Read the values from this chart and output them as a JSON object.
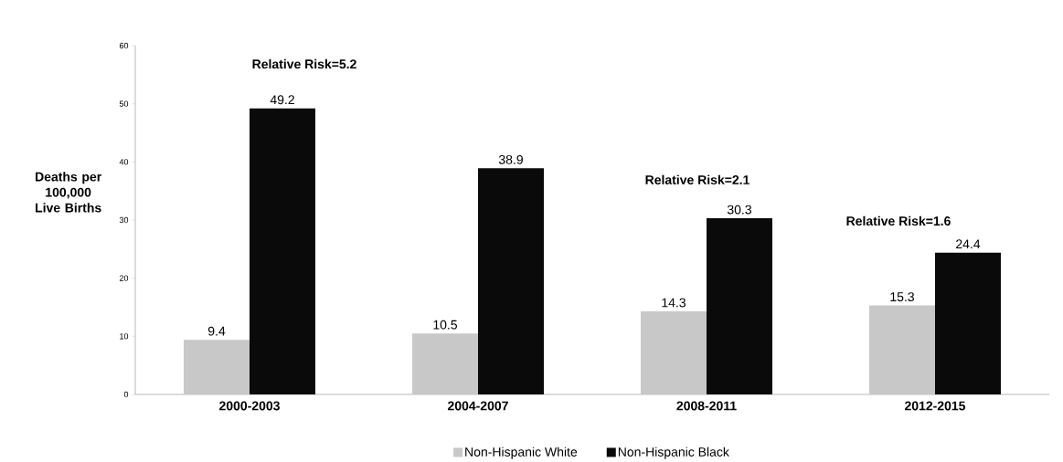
{
  "chart_data": {
    "type": "bar",
    "ylabel": "Deaths per 100,000 Live Births",
    "categories": [
      "2000-2003",
      "2004-2007",
      "2008-2011",
      "2012-2015"
    ],
    "series": [
      {
        "name": "Non-Hispanic White",
        "color": "#c8c8c8",
        "values": [
          9.4,
          10.5,
          14.3,
          15.3
        ]
      },
      {
        "name": "Non-Hispanic Black",
        "color": "#0a0a0a",
        "values": [
          49.2,
          38.9,
          30.3,
          24.4
        ]
      }
    ],
    "ylim": [
      0,
      60
    ],
    "yticks": [
      0,
      10,
      20,
      30,
      40,
      50,
      60
    ],
    "data_labels": true,
    "grid": false,
    "legend": "bottom",
    "annotations": [
      "Relative Risk=5.2",
      "Relative Risk=2.1",
      "Relative Risk=1.6"
    ]
  }
}
